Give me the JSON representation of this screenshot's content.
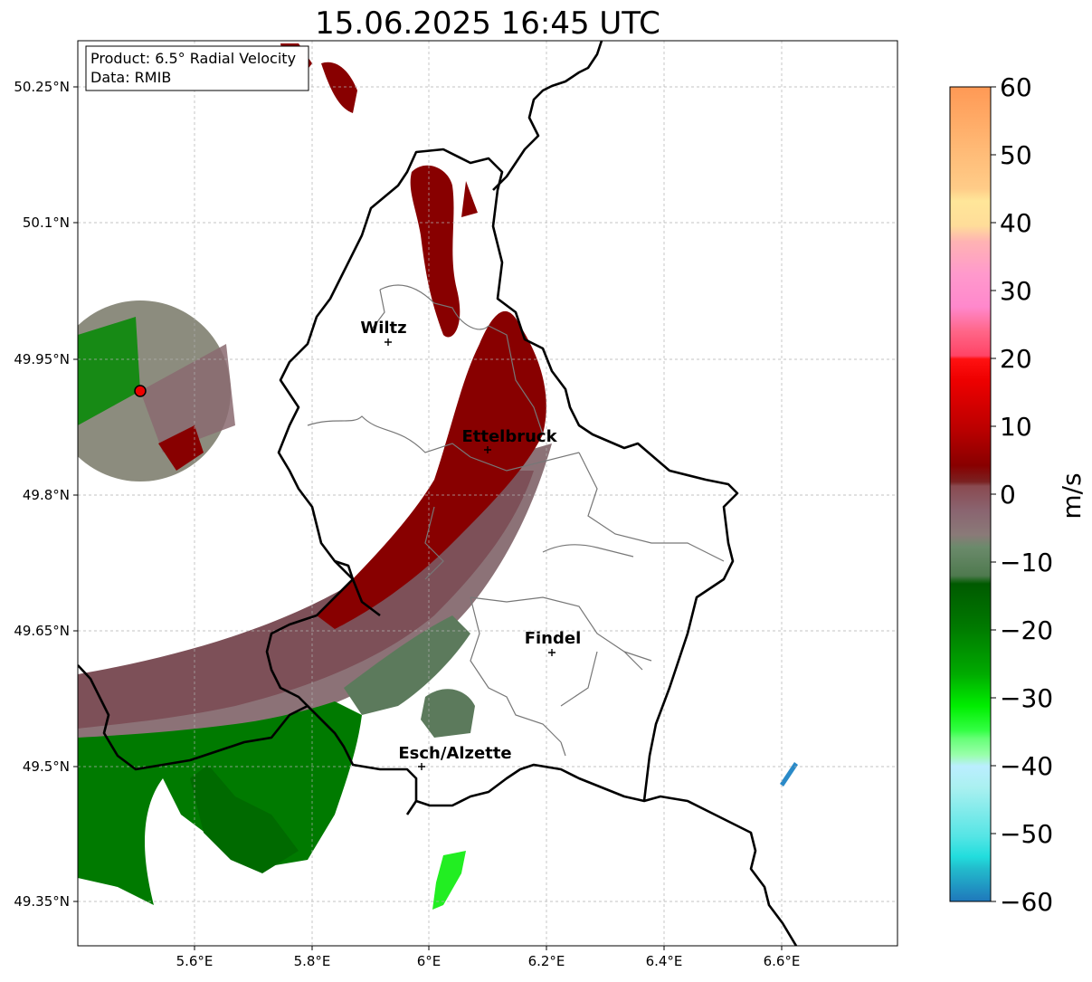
{
  "title": "15.06.2025 16:45 UTC",
  "info": {
    "product_line": "Product: 6.5° Radial Velocity",
    "data_line": "Data: RMIB"
  },
  "axes": {
    "x_ticks": [
      "5.6°E",
      "5.8°E",
      "6°E",
      "6.2°E",
      "6.4°E",
      "6.6°E"
    ],
    "y_ticks": [
      "50.25°N",
      "50.1°N",
      "49.95°N",
      "49.8°N",
      "49.65°N",
      "49.5°N",
      "49.35°N"
    ]
  },
  "cities": [
    {
      "name": "Wiltz",
      "lon": 5.935,
      "lat": 49.966
    },
    {
      "name": "Ettelbruck",
      "lon": 6.104,
      "lat": 49.847
    },
    {
      "name": "Findel",
      "lon": 6.209,
      "lat": 49.627
    },
    {
      "name": "Esch/Alzette",
      "lon": 5.981,
      "lat": 49.496
    }
  ],
  "radar_site": {
    "lon": 5.505,
    "lat": 49.914
  },
  "colorbar": {
    "label": "m/s",
    "min": -60,
    "max": 60,
    "ticks": [
      "60",
      "50",
      "40",
      "30",
      "20",
      "10",
      "0",
      "−10",
      "−20",
      "−30",
      "−40",
      "−50",
      "−60"
    ],
    "colors": {
      "top": "#ff9955",
      "orange_light": "#ffcc88",
      "yellow": "#ffe699",
      "pink_light": "#ffb3c6",
      "pink": "#ff88cc",
      "red_pink": "#ff5566",
      "red": "#ee0000",
      "dark_red": "#880000",
      "mauve": "#8a5a60",
      "gray_green": "#6b8a6b",
      "dark_green": "#006600",
      "green": "#00cc00",
      "bright_green": "#33ff44",
      "mint": "#99ffaa",
      "pale_cyan": "#bbeeff",
      "cyan": "#33dddd",
      "blue": "#2277bb"
    }
  }
}
